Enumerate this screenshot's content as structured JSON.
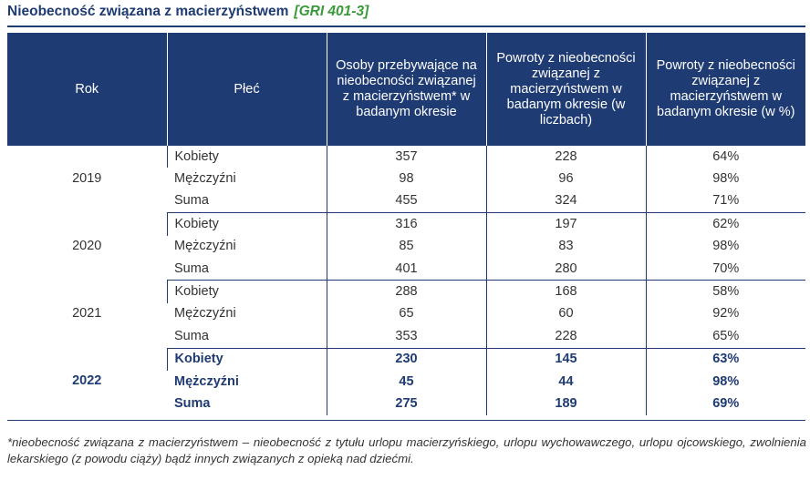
{
  "title": "Nieobecność związana z macierzyństwem",
  "gri": "[GRI 401-3]",
  "headers": [
    "Rok",
    "Płeć",
    "Osoby przebywające na nieobecności związanej z macierzyństwem* w badanym okresie",
    "Powroty z nieobecności związanej z macierzyństwem w badanym okresie (w liczbach)",
    "Powroty z nieobecności związanej z macierzyństwem w badanym okresie (w %)"
  ],
  "groups": [
    {
      "year": "2019",
      "rows": [
        {
          "gender": "Kobiety",
          "on_leave": "357",
          "returns": "228",
          "returns_pct": "64%"
        },
        {
          "gender": "Mężczyźni",
          "on_leave": "98",
          "returns": "96",
          "returns_pct": "98%"
        },
        {
          "gender": "Suma",
          "on_leave": "455",
          "returns": "324",
          "returns_pct": "71%"
        }
      ]
    },
    {
      "year": "2020",
      "rows": [
        {
          "gender": "Kobiety",
          "on_leave": "316",
          "returns": "197",
          "returns_pct": "62%"
        },
        {
          "gender": "Mężczyźni",
          "on_leave": "85",
          "returns": "83",
          "returns_pct": "98%"
        },
        {
          "gender": "Suma",
          "on_leave": "401",
          "returns": "280",
          "returns_pct": "70%"
        }
      ]
    },
    {
      "year": "2021",
      "rows": [
        {
          "gender": "Kobiety",
          "on_leave": "288",
          "returns": "168",
          "returns_pct": "58%"
        },
        {
          "gender": "Mężczyźni",
          "on_leave": "65",
          "returns": "60",
          "returns_pct": "92%"
        },
        {
          "gender": "Suma",
          "on_leave": "353",
          "returns": "228",
          "returns_pct": "65%"
        }
      ]
    },
    {
      "year": "2022",
      "rows": [
        {
          "gender": "Kobiety",
          "on_leave": "230",
          "returns": "145",
          "returns_pct": "63%"
        },
        {
          "gender": "Mężczyźni",
          "on_leave": "45",
          "returns": "44",
          "returns_pct": "98%"
        },
        {
          "gender": "Suma",
          "on_leave": "275",
          "returns": "189",
          "returns_pct": "69%"
        }
      ]
    }
  ],
  "footnote": "*nieobecność związana z macierzyństwem – nieobecność z tytułu urlopu macierzyńskiego, urlopu wychowawczego, urlopu ojcowskiego, zwolnienia lekarskiego (z powodu ciąży) bądź innych związanych z opieką nad dziećmi.",
  "colors": {
    "header_bg": "#1f3b73",
    "gri_green": "#3a9a3a",
    "title_blue": "#1f3b73"
  }
}
